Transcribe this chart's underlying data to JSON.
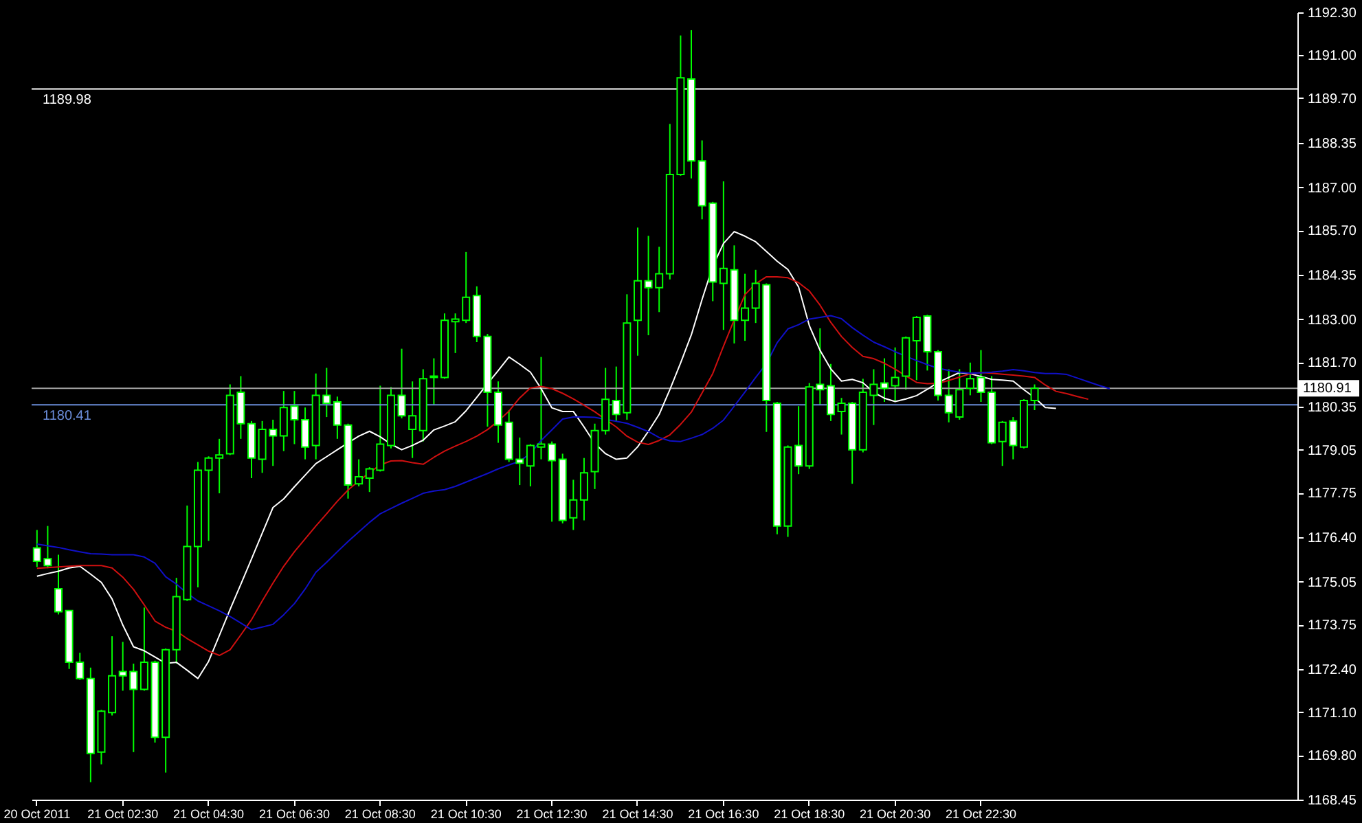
{
  "chart_data": {
    "type": "candlestick",
    "color": "#00ff00",
    "categories": [
      "20 Oct 2011",
      null,
      null,
      null,
      null,
      null,
      null,
      null,
      "21 Oct 02:30",
      null,
      null,
      null,
      null,
      null,
      null,
      null,
      "21 Oct 04:30",
      null,
      null,
      null,
      null,
      null,
      null,
      null,
      "21 Oct 06:30",
      null,
      null,
      null,
      null,
      null,
      null,
      null,
      "21 Oct 08:30",
      null,
      null,
      null,
      null,
      null,
      null,
      null,
      "21 Oct 10:30",
      null,
      null,
      null,
      null,
      null,
      null,
      null,
      "21 Oct 12:30",
      null,
      null,
      null,
      null,
      null,
      null,
      null,
      "21 Oct 14:30",
      null,
      null,
      null,
      null,
      null,
      null,
      null,
      "21 Oct 16:30",
      null,
      null,
      null,
      null,
      null,
      null,
      null,
      "21 Oct 18:30",
      null,
      null,
      null,
      null,
      null,
      null,
      null,
      "21 Oct 20:30",
      null,
      null,
      null,
      null,
      null,
      null,
      null,
      "21 Oct 22:30",
      null,
      null,
      null,
      null,
      null,
      null,
      null,
      null,
      null,
      null,
      null,
      null,
      null,
      null,
      null,
      null,
      null,
      null,
      null,
      null,
      null,
      null,
      null,
      null,
      null,
      null,
      null,
      null,
      null
    ],
    "ohlc": [
      [
        1176.08,
        1176.62,
        1175.5,
        1175.67
      ],
      [
        1175.75,
        1176.74,
        1175.46,
        1175.54
      ],
      [
        1174.84,
        1175.87,
        1174.06,
        1174.14
      ],
      [
        1174.18,
        1174.18,
        1172.41,
        1172.61
      ],
      [
        1172.61,
        1172.9,
        1172.08,
        1172.12
      ],
      [
        1172.12,
        1172.45,
        1168.98,
        1169.85
      ],
      [
        1169.89,
        1171.17,
        1169.52,
        1171.13
      ],
      [
        1171.09,
        1173.4,
        1171.0,
        1172.2
      ],
      [
        1172.33,
        1173.23,
        1171.75,
        1172.2
      ],
      [
        1172.33,
        1172.57,
        1169.89,
        1171.79
      ],
      [
        1171.79,
        1174.27,
        1171.75,
        1172.61
      ],
      [
        1172.61,
        1172.66,
        1170.18,
        1170.34
      ],
      [
        1170.34,
        1173.03,
        1169.27,
        1172.99
      ],
      [
        1172.99,
        1175.17,
        1172.57,
        1174.6
      ],
      [
        1174.51,
        1177.36,
        1174.47,
        1176.12
      ],
      [
        1176.12,
        1178.68,
        1174.88,
        1178.43
      ],
      [
        1178.43,
        1178.85,
        1176.29,
        1178.8
      ],
      [
        1178.8,
        1179.38,
        1177.73,
        1178.89
      ],
      [
        1178.93,
        1181.03,
        1178.89,
        1180.7
      ],
      [
        1180.79,
        1181.28,
        1179.38,
        1179.84
      ],
      [
        1179.84,
        1179.92,
        1178.19,
        1178.8
      ],
      [
        1178.76,
        1179.92,
        1178.35,
        1179.67
      ],
      [
        1179.67,
        1179.96,
        1178.56,
        1179.47
      ],
      [
        1179.47,
        1180.83,
        1179.01,
        1180.33
      ],
      [
        1180.37,
        1180.83,
        1179.22,
        1179.96
      ],
      [
        1179.96,
        1180.33,
        1178.76,
        1179.13
      ],
      [
        1179.18,
        1181.36,
        1178.76,
        1180.7
      ],
      [
        1180.7,
        1181.53,
        1180.04,
        1180.46
      ],
      [
        1180.5,
        1180.66,
        1179.38,
        1179.8
      ],
      [
        1179.8,
        1179.84,
        1177.57,
        1177.98
      ],
      [
        1178.02,
        1178.76,
        1177.94,
        1178.23
      ],
      [
        1178.19,
        1178.52,
        1177.77,
        1178.47
      ],
      [
        1178.43,
        1180.99,
        1178.39,
        1179.22
      ],
      [
        1179.18,
        1180.95,
        1179.09,
        1180.7
      ],
      [
        1180.7,
        1182.11,
        1180.0,
        1180.08
      ],
      [
        1179.67,
        1181.12,
        1178.8,
        1180.08
      ],
      [
        1179.63,
        1181.49,
        1179.3,
        1181.2
      ],
      [
        1181.24,
        1181.82,
        1180.41,
        1181.28
      ],
      [
        1181.24,
        1183.18,
        1181.2,
        1182.97
      ],
      [
        1182.93,
        1183.18,
        1181.98,
        1183.01
      ],
      [
        1182.97,
        1185.04,
        1182.89,
        1183.67
      ],
      [
        1183.72,
        1184.0,
        1182.31,
        1182.48
      ],
      [
        1182.48,
        1182.56,
        1179.75,
        1180.79
      ],
      [
        1180.79,
        1181.12,
        1179.26,
        1179.8
      ],
      [
        1179.88,
        1180.25,
        1178.68,
        1178.76
      ],
      [
        1178.76,
        1179.42,
        1177.98,
        1178.64
      ],
      [
        1178.56,
        1179.22,
        1177.94,
        1179.18
      ],
      [
        1179.13,
        1181.86,
        1178.76,
        1179.22
      ],
      [
        1179.22,
        1179.3,
        1176.87,
        1178.72
      ],
      [
        1178.76,
        1178.93,
        1176.82,
        1176.91
      ],
      [
        1176.99,
        1178.14,
        1176.62,
        1177.53
      ],
      [
        1177.53,
        1178.8,
        1176.91,
        1178.35
      ],
      [
        1178.39,
        1179.84,
        1177.86,
        1179.63
      ],
      [
        1179.63,
        1181.53,
        1179.51,
        1180.58
      ],
      [
        1180.54,
        1181.57,
        1179.92,
        1180.12
      ],
      [
        1180.17,
        1183.76,
        1179.96,
        1182.89
      ],
      [
        1182.97,
        1185.78,
        1181.9,
        1184.17
      ],
      [
        1184.17,
        1185.53,
        1182.52,
        1183.96
      ],
      [
        1183.96,
        1185.2,
        1183.22,
        1184.38
      ],
      [
        1184.38,
        1188.92,
        1184.21,
        1187.39
      ],
      [
        1187.39,
        1191.6,
        1187.35,
        1190.32
      ],
      [
        1190.28,
        1191.76,
        1187.27,
        1187.8
      ],
      [
        1187.8,
        1188.42,
        1186.03,
        1186.44
      ],
      [
        1186.52,
        1186.56,
        1183.55,
        1184.13
      ],
      [
        1184.09,
        1187.18,
        1182.68,
        1184.54
      ],
      [
        1184.5,
        1185.24,
        1182.27,
        1182.97
      ],
      [
        1182.97,
        1184.38,
        1182.35,
        1183.34
      ],
      [
        1183.34,
        1184.5,
        1182.89,
        1184.09
      ],
      [
        1184.05,
        1184.09,
        1179.59,
        1180.54
      ],
      [
        1180.46,
        1180.5,
        1176.49,
        1176.74
      ],
      [
        1176.74,
        1179.18,
        1176.41,
        1179.13
      ],
      [
        1179.18,
        1180.37,
        1178.31,
        1178.56
      ],
      [
        1178.56,
        1181.07,
        1178.47,
        1180.95
      ],
      [
        1181.03,
        1182.73,
        1180.41,
        1180.87
      ],
      [
        1180.99,
        1181.65,
        1179.92,
        1180.12
      ],
      [
        1180.21,
        1180.62,
        1179.51,
        1180.46
      ],
      [
        1180.46,
        1180.5,
        1178.02,
        1179.05
      ],
      [
        1179.05,
        1181.2,
        1178.97,
        1180.79
      ],
      [
        1180.7,
        1181.49,
        1179.8,
        1181.03
      ],
      [
        1181.07,
        1181.82,
        1180.5,
        1180.91
      ],
      [
        1180.99,
        1182.15,
        1180.5,
        1181.24
      ],
      [
        1181.28,
        1182.48,
        1180.87,
        1182.44
      ],
      [
        1182.35,
        1183.1,
        1181.16,
        1183.06
      ],
      [
        1183.1,
        1183.14,
        1181.45,
        1182.02
      ],
      [
        1182.02,
        1182.07,
        1180.54,
        1180.7
      ],
      [
        1180.7,
        1181.49,
        1179.88,
        1180.17
      ],
      [
        1180.04,
        1181.49,
        1179.96,
        1180.87
      ],
      [
        1180.91,
        1181.69,
        1180.7,
        1181.2
      ],
      [
        1181.24,
        1182.07,
        1180.5,
        1180.79
      ],
      [
        1180.79,
        1181.28,
        1179.22,
        1179.26
      ],
      [
        1179.3,
        1179.92,
        1178.56,
        1179.88
      ],
      [
        1179.92,
        1180.04,
        1178.76,
        1179.18
      ],
      [
        1179.13,
        1180.58,
        1179.09,
        1180.54
      ],
      [
        1180.54,
        1181.03,
        1180.25,
        1180.91
      ],
      null,
      null,
      null,
      null,
      null,
      null,
      null,
      null,
      null,
      null,
      null,
      null,
      null,
      null,
      null,
      null,
      null,
      null,
      null,
      null,
      null,
      null,
      null,
      null
    ],
    "series": [
      {
        "type": "line",
        "color": "#ffffff",
        "values": [
          1175.22,
          1175.3,
          1175.37,
          1175.47,
          1175.52,
          1175.28,
          1175.03,
          1174.53,
          1173.74,
          1173.08,
          1172.96,
          1172.77,
          1172.58,
          1172.61,
          1172.37,
          1172.12,
          1172.64,
          1173.42,
          1174.21,
          1174.97,
          1175.74,
          1176.52,
          1177.3,
          1177.56,
          1177.93,
          1178.28,
          1178.63,
          1178.84,
          1179.05,
          1179.26,
          1179.46,
          1179.61,
          1179.44,
          1179.22,
          1179.05,
          1179.18,
          1179.34,
          1179.65,
          1179.77,
          1179.9,
          1180.23,
          1180.64,
          1181.05,
          1181.45,
          1181.86,
          1181.64,
          1181.4,
          1180.9,
          1180.32,
          1180.21,
          1180.21,
          1179.74,
          1179.24,
          1178.93,
          1178.76,
          1178.8,
          1179.14,
          1179.61,
          1180.12,
          1180.87,
          1181.68,
          1182.53,
          1183.6,
          1184.61,
          1185.3,
          1185.66,
          1185.52,
          1185.35,
          1185.06,
          1184.76,
          1184.51,
          1183.98,
          1182.81,
          1182.06,
          1181.5,
          1181.13,
          1181.18,
          1181.08,
          1180.79,
          1180.61,
          1180.51,
          1180.59,
          1180.69,
          1180.88,
          1181.09,
          1181.24,
          1181.39,
          1181.35,
          1181.27,
          1181.18,
          1181.16,
          1181.13,
          1180.87,
          1180.63,
          1180.33,
          1180.3,
          null,
          null,
          null,
          null,
          null,
          null,
          null,
          null,
          null,
          null,
          null,
          null,
          null,
          null,
          null,
          null,
          null,
          null,
          null,
          null,
          null,
          null
        ]
      },
      {
        "type": "line",
        "color": "#d01010",
        "values": [
          1175.46,
          1175.48,
          1175.5,
          1175.52,
          1175.54,
          1175.54,
          1175.54,
          1175.47,
          1175.19,
          1174.82,
          1174.35,
          1173.86,
          1173.67,
          1173.55,
          1173.33,
          1173.14,
          1172.95,
          1172.82,
          1172.99,
          1173.44,
          1173.9,
          1174.47,
          1175.01,
          1175.52,
          1175.96,
          1176.35,
          1176.74,
          1177.11,
          1177.49,
          1177.83,
          1178.1,
          1178.36,
          1178.59,
          1178.71,
          1178.72,
          1178.66,
          1178.61,
          1178.82,
          1179.01,
          1179.16,
          1179.3,
          1179.46,
          1179.66,
          1179.92,
          1180.22,
          1180.62,
          1180.92,
          1180.97,
          1180.9,
          1180.76,
          1180.59,
          1180.4,
          1180.2,
          1179.97,
          1179.74,
          1179.46,
          1179.28,
          1179.21,
          1179.33,
          1179.5,
          1179.82,
          1180.19,
          1180.77,
          1181.36,
          1182.19,
          1182.99,
          1183.75,
          1184.08,
          1184.29,
          1184.29,
          1184.26,
          1184.11,
          1183.86,
          1183.43,
          1182.91,
          1182.48,
          1182.15,
          1181.88,
          1181.81,
          1181.67,
          1181.49,
          1181.29,
          1181.09,
          1181.05,
          1181.06,
          1181.15,
          1181.25,
          1181.35,
          1181.39,
          1181.37,
          1181.34,
          1181.31,
          1181.28,
          1181.24,
          1181.01,
          1180.82,
          1180.75,
          1180.66,
          1180.58,
          null,
          null,
          null,
          null,
          null,
          null,
          null,
          null,
          null,
          null,
          null,
          null,
          null,
          null,
          null,
          null,
          null,
          null,
          null
        ]
      },
      {
        "type": "line",
        "color": "#1010c8",
        "values": [
          1176.19,
          1176.14,
          1176.09,
          1176.02,
          1175.96,
          1175.9,
          1175.89,
          1175.87,
          1175.87,
          1175.87,
          1175.8,
          1175.61,
          1175.2,
          1174.98,
          1174.7,
          1174.47,
          1174.32,
          1174.17,
          1174.0,
          1173.8,
          1173.6,
          1173.68,
          1173.76,
          1174.05,
          1174.39,
          1174.83,
          1175.34,
          1175.64,
          1175.96,
          1176.27,
          1176.56,
          1176.85,
          1177.11,
          1177.27,
          1177.43,
          1177.58,
          1177.73,
          1177.8,
          1177.84,
          1177.94,
          1178.07,
          1178.2,
          1178.33,
          1178.47,
          1178.59,
          1178.7,
          1178.94,
          1179.33,
          1179.65,
          1179.98,
          1180.04,
          1180.04,
          1180.03,
          1179.97,
          1179.91,
          1179.85,
          1179.73,
          1179.6,
          1179.42,
          1179.32,
          1179.3,
          1179.4,
          1179.51,
          1179.7,
          1179.95,
          1180.37,
          1180.8,
          1181.24,
          1181.66,
          1182.29,
          1182.71,
          1182.84,
          1183.01,
          1183.06,
          1183.11,
          1183.02,
          1182.75,
          1182.52,
          1182.31,
          1182.17,
          1182.02,
          1181.88,
          1181.75,
          1181.63,
          1181.52,
          1181.45,
          1181.4,
          1181.37,
          1181.38,
          1181.4,
          1181.43,
          1181.48,
          1181.44,
          1181.39,
          1181.36,
          1181.36,
          1181.33,
          1181.22,
          1181.11,
          1181.0,
          1180.9,
          null,
          null,
          null,
          null,
          null,
          null,
          null,
          null,
          null,
          null,
          null,
          null,
          null,
          null,
          null,
          null,
          null
        ]
      }
    ],
    "ref_lines": [
      {
        "axis": "y",
        "value": 1189.98,
        "label": "1189.98",
        "color": "#ffffff"
      },
      {
        "axis": "y",
        "value": 1180.41,
        "label": "1180.41",
        "color": "#6a8cd8"
      },
      {
        "axis": "y",
        "value": 1180.91,
        "label": "1180.91",
        "color": "#a0a0a0"
      }
    ],
    "ylim": [
      1168.45,
      1192.3
    ],
    "yticks": [
      {
        "value": 1192.3,
        "label": "1192.30"
      },
      {
        "value": 1191.0,
        "label": "1191.00"
      },
      {
        "value": 1189.7,
        "label": "1189.70"
      },
      {
        "value": 1188.35,
        "label": "1188.35"
      },
      {
        "value": 1187.0,
        "label": "1187.00"
      },
      {
        "value": 1185.7,
        "label": "1185.70"
      },
      {
        "value": 1184.35,
        "label": "1184.35"
      },
      {
        "value": 1183.0,
        "label": "1183.00"
      },
      {
        "value": 1181.7,
        "label": "1181.70"
      },
      {
        "value": 1180.35,
        "label": "1180.35"
      },
      {
        "value": 1179.05,
        "label": "1179.05"
      },
      {
        "value": 1177.75,
        "label": "1177.75"
      },
      {
        "value": 1176.4,
        "label": "1176.40"
      },
      {
        "value": 1175.05,
        "label": "1175.05"
      },
      {
        "value": 1173.75,
        "label": "1173.75"
      },
      {
        "value": 1172.4,
        "label": "1172.40"
      },
      {
        "value": 1171.1,
        "label": "1171.10"
      },
      {
        "value": 1169.8,
        "label": "1169.80"
      },
      {
        "value": 1168.45,
        "label": "1168.45"
      }
    ]
  }
}
